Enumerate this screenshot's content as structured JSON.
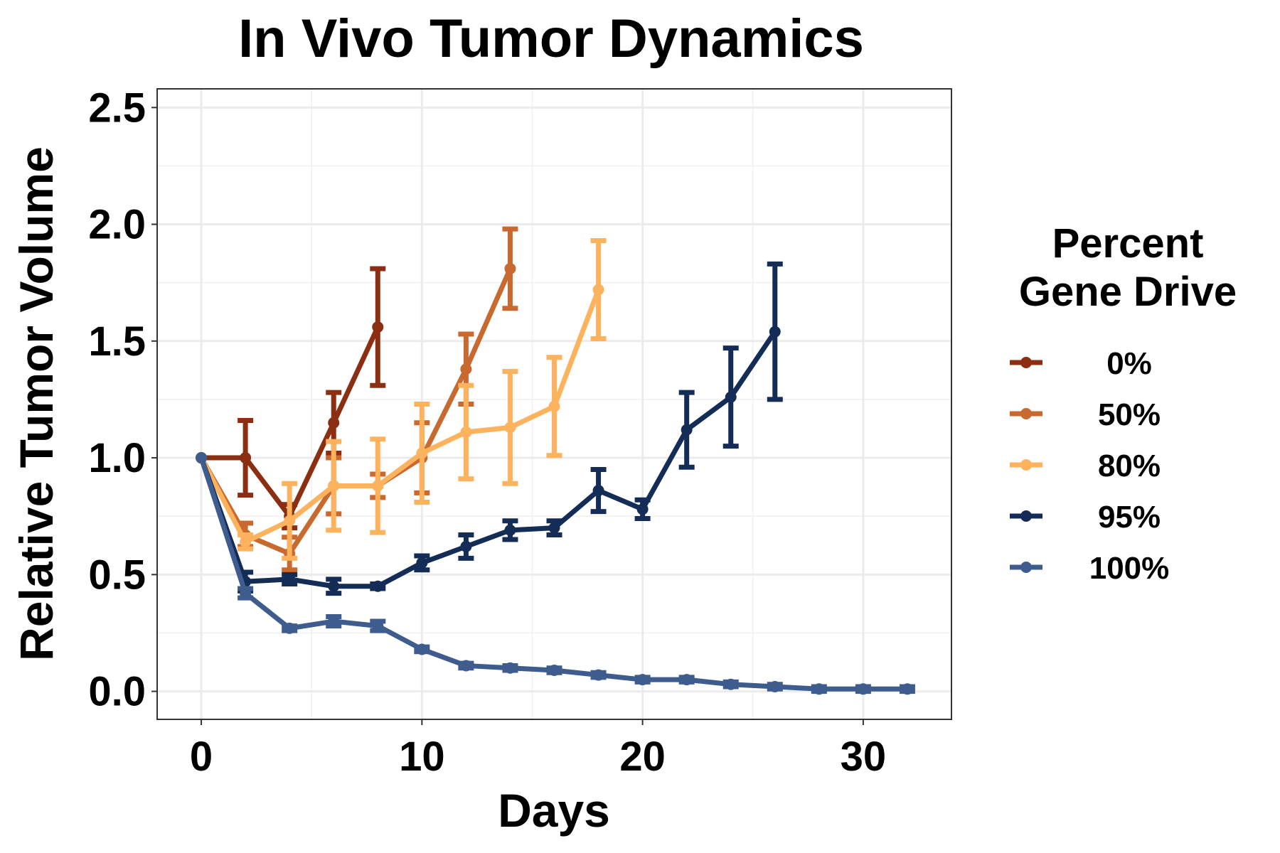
{
  "chart_data": {
    "type": "line",
    "title": "In Vivo Tumor Dynamics",
    "xlabel": "Days",
    "ylabel": "Relative Tumor Volume",
    "xlim": [
      -2,
      34
    ],
    "ylim": [
      -0.12,
      2.58
    ],
    "x_ticks": [
      0,
      10,
      20,
      30
    ],
    "y_ticks": [
      0.0,
      0.5,
      1.0,
      1.5,
      2.0,
      2.5
    ],
    "x_tick_labels": [
      "0",
      "10",
      "20",
      "30"
    ],
    "y_tick_labels": [
      "0.0",
      "0.5",
      "1.0",
      "1.5",
      "2.0",
      "2.5"
    ],
    "grid": true,
    "legend": {
      "position": "right",
      "title_line1": "Percent",
      "title_line2": "Gene Drive"
    },
    "series": [
      {
        "name": "0%",
        "color": "#8B2E12",
        "x": [
          0,
          2,
          4,
          6,
          8
        ],
        "y": [
          1.0,
          1.0,
          0.75,
          1.15,
          1.56
        ],
        "err": [
          0.0,
          0.16,
          0.05,
          0.13,
          0.25
        ]
      },
      {
        "name": "50%",
        "color": "#C8692F",
        "x": [
          0,
          2,
          4,
          6,
          8,
          10,
          12,
          14
        ],
        "y": [
          1.0,
          0.67,
          0.59,
          0.88,
          0.88,
          1.0,
          1.38,
          1.81
        ],
        "err": [
          0.0,
          0.05,
          0.07,
          0.12,
          0.05,
          0.15,
          0.15,
          0.17
        ]
      },
      {
        "name": "80%",
        "color": "#FDB25D",
        "x": [
          0,
          2,
          4,
          6,
          8,
          10,
          12,
          14,
          16,
          18
        ],
        "y": [
          1.0,
          0.64,
          0.73,
          0.88,
          0.88,
          1.02,
          1.11,
          1.13,
          1.22,
          1.72
        ],
        "err": [
          0.0,
          0.03,
          0.16,
          0.19,
          0.2,
          0.21,
          0.2,
          0.24,
          0.21,
          0.21
        ]
      },
      {
        "name": "95%",
        "color": "#142D57",
        "x": [
          0,
          2,
          4,
          6,
          8,
          10,
          12,
          14,
          16,
          18,
          20,
          22,
          24,
          26
        ],
        "y": [
          1.0,
          0.47,
          0.48,
          0.45,
          0.45,
          0.55,
          0.62,
          0.69,
          0.7,
          0.86,
          0.78,
          1.12,
          1.26,
          1.54
        ],
        "err": [
          0.0,
          0.04,
          0.02,
          0.03,
          0.01,
          0.03,
          0.05,
          0.04,
          0.03,
          0.09,
          0.04,
          0.16,
          0.21,
          0.29
        ]
      },
      {
        "name": "100%",
        "color": "#3F5C8E",
        "x": [
          0,
          2,
          4,
          6,
          8,
          10,
          12,
          14,
          16,
          18,
          20,
          22,
          24,
          26,
          28,
          30,
          32
        ],
        "y": [
          1.0,
          0.42,
          0.27,
          0.3,
          0.28,
          0.18,
          0.11,
          0.1,
          0.09,
          0.07,
          0.05,
          0.05,
          0.03,
          0.02,
          0.01,
          0.01,
          0.01
        ],
        "err": [
          0.0,
          0.02,
          0.01,
          0.02,
          0.02,
          0.01,
          0.01,
          0.01,
          0.01,
          0.01,
          0.01,
          0.01,
          0.01,
          0.01,
          0.01,
          0.01,
          0.01
        ]
      }
    ]
  }
}
